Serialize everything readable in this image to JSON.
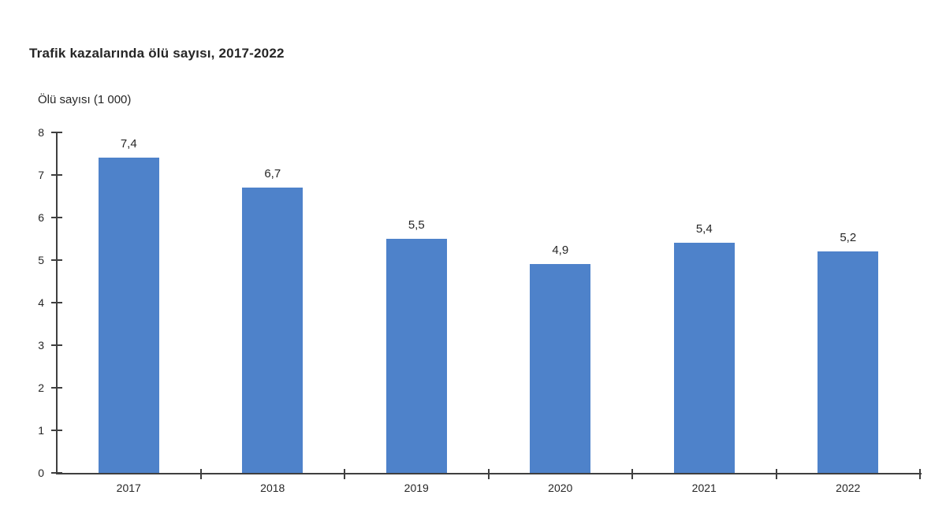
{
  "page": {
    "background_color": "#ffffff"
  },
  "chart_data": {
    "type": "bar",
    "title": "Trafik kazalarında ölü sayısı, 2017-2022",
    "ylabel": "Ölü sayısı (1 000)",
    "xlabel": "",
    "categories": [
      "2017",
      "2018",
      "2019",
      "2020",
      "2021",
      "2022"
    ],
    "values": [
      7.4,
      6.7,
      5.5,
      4.9,
      5.4,
      5.2
    ],
    "value_labels": [
      "7,4",
      "6,7",
      "5,5",
      "4,9",
      "5,4",
      "5,2"
    ],
    "ylim": [
      0,
      8
    ],
    "yticks": [
      0,
      1,
      2,
      3,
      4,
      5,
      6,
      7,
      8
    ],
    "ytick_labels": [
      "0",
      "1",
      "2",
      "3",
      "4",
      "5",
      "6",
      "7",
      "8"
    ],
    "grid": false,
    "legend": false,
    "bar_color": "#4e82ca",
    "axis_color": "#3f3f3f",
    "text_color": "#262626",
    "title_color": "#262626"
  }
}
